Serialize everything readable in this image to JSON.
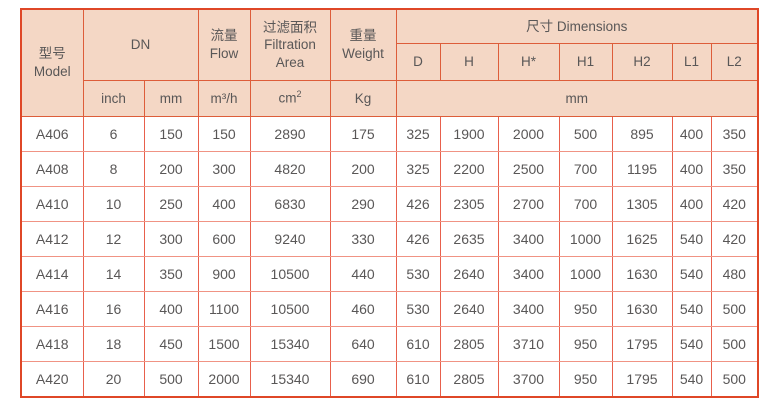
{
  "colors": {
    "header_bg": "#f4d7c5",
    "outer_border": "#df4727",
    "header_border": "#dd5d3a",
    "data_border_horizontal": "#f09384",
    "data_border_vertical": "#e8604c",
    "text": "#595757",
    "data_bg": "#ffffff"
  },
  "table": {
    "header": {
      "model_zh": "型号",
      "model_en": "Model",
      "dn": "DN",
      "flow_zh": "流量",
      "flow_en": "Flow",
      "filtration_zh": "过滤面积",
      "filtration_en": "Filtration Area",
      "weight_zh": "重量",
      "weight_en": "Weight",
      "dimensions": "尺寸 Dimensions",
      "dim_cols": [
        "D",
        "H",
        "H*",
        "H1",
        "H2",
        "L1",
        "L2"
      ],
      "units": {
        "dn_inch": "inch",
        "dn_mm": "mm",
        "flow": "m³/h",
        "filtration": "cm²",
        "weight": "Kg",
        "dimensions": "mm"
      }
    },
    "column_keys": [
      "model",
      "dn-inch",
      "dn-mm",
      "flow",
      "filtration-area",
      "weight",
      "dim-d",
      "dim-h",
      "dim-hstar",
      "dim-h1",
      "dim-h2",
      "dim-l1",
      "dim-l2"
    ],
    "rows": [
      [
        "A406",
        "6",
        "150",
        "150",
        "2890",
        "175",
        "325",
        "1900",
        "2000",
        "500",
        "895",
        "400",
        "350"
      ],
      [
        "A408",
        "8",
        "200",
        "300",
        "4820",
        "200",
        "325",
        "2200",
        "2500",
        "700",
        "1195",
        "400",
        "350"
      ],
      [
        "A410",
        "10",
        "250",
        "400",
        "6830",
        "290",
        "426",
        "2305",
        "2700",
        "700",
        "1305",
        "400",
        "420"
      ],
      [
        "A412",
        "12",
        "300",
        "600",
        "9240",
        "330",
        "426",
        "2635",
        "3400",
        "1000",
        "1625",
        "540",
        "420"
      ],
      [
        "A414",
        "14",
        "350",
        "900",
        "10500",
        "440",
        "530",
        "2640",
        "3400",
        "1000",
        "1630",
        "540",
        "480"
      ],
      [
        "A416",
        "16",
        "400",
        "1100",
        "10500",
        "460",
        "530",
        "2640",
        "3400",
        "950",
        "1630",
        "540",
        "500"
      ],
      [
        "A418",
        "18",
        "450",
        "1500",
        "15340",
        "640",
        "610",
        "2805",
        "3710",
        "950",
        "1795",
        "540",
        "500"
      ],
      [
        "A420",
        "20",
        "500",
        "2000",
        "15340",
        "690",
        "610",
        "2805",
        "3700",
        "950",
        "1795",
        "540",
        "500"
      ]
    ]
  }
}
